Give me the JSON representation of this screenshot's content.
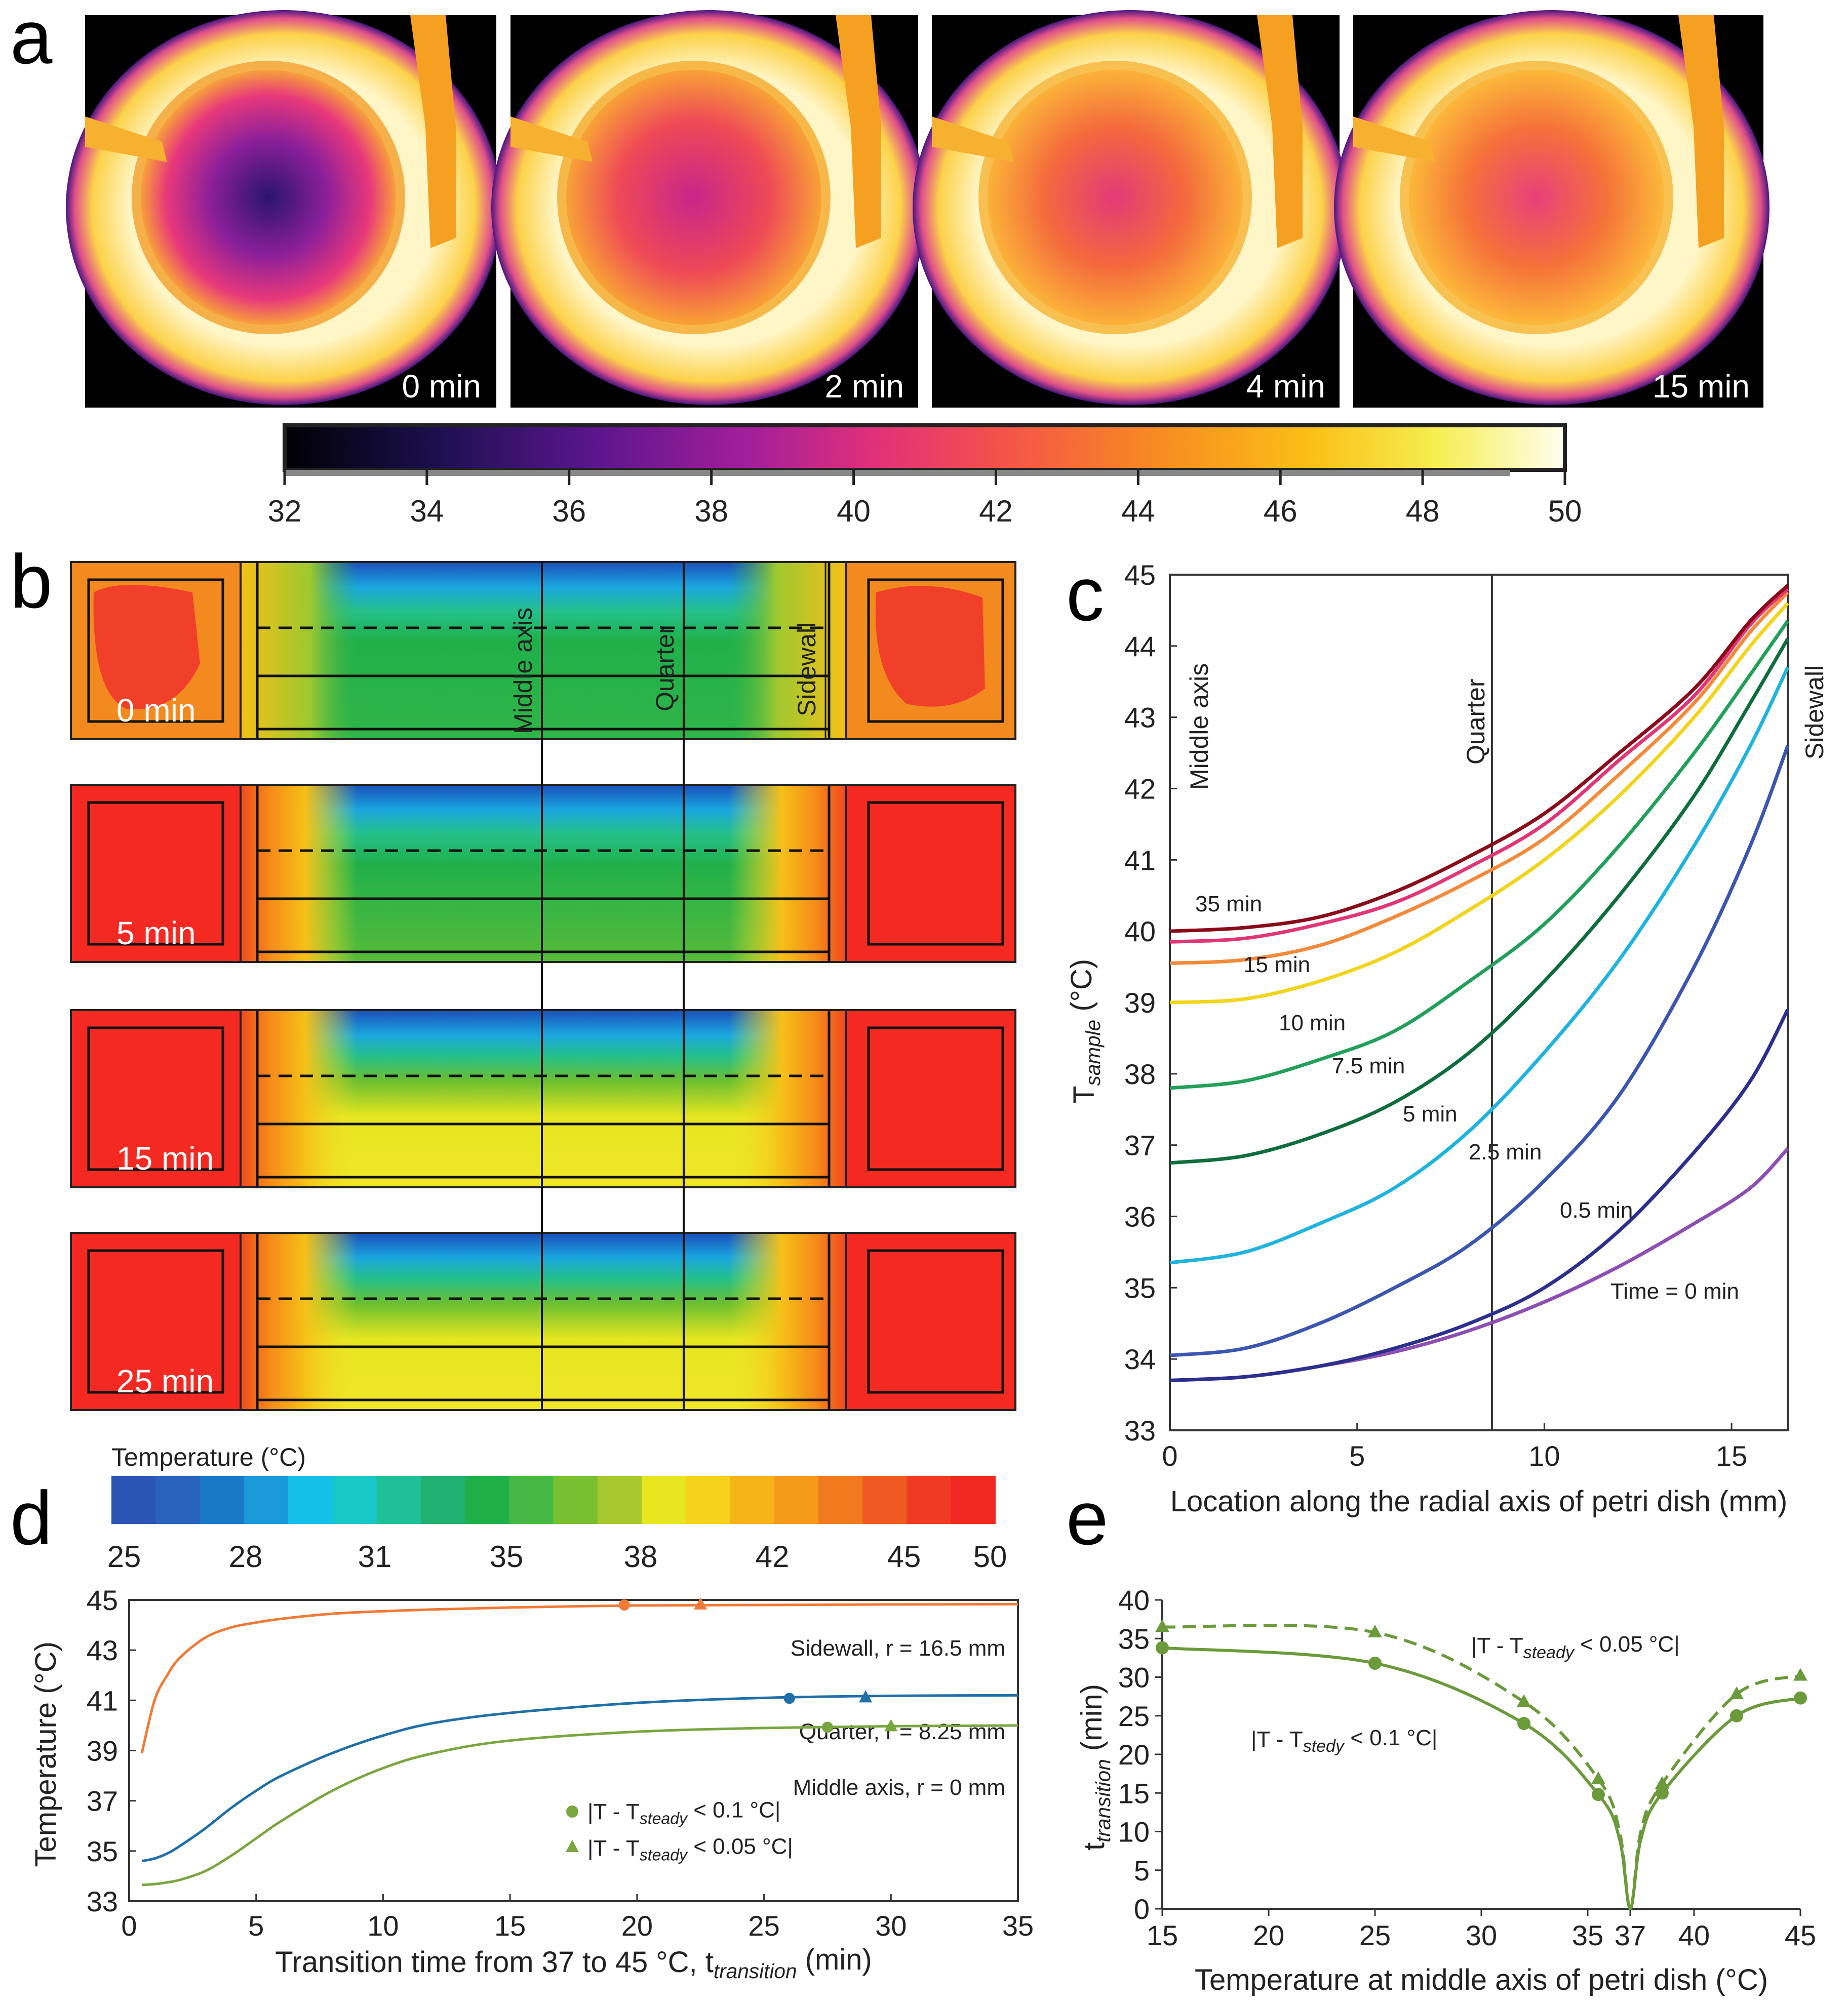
{
  "panel_labels": {
    "a": "a",
    "b": "b",
    "c": "c",
    "d": "d",
    "e": "e"
  },
  "colors": {
    "series_c": [
      "#8e4fb4",
      "#2b2f8e",
      "#3b56b0",
      "#1fb3df",
      "#0e6d3c",
      "#22a05a",
      "#f2d41a",
      "#f38a3a",
      "#e23575",
      "#8b0a1a"
    ],
    "sidewall": "#f07a36",
    "quarter": "#1f6fa8",
    "middle": "#7aa63f",
    "e_series": "#6a9a3a"
  },
  "panel_a": {
    "frames": [
      {
        "label": "0 min"
      },
      {
        "label": "2 min"
      },
      {
        "label": "4 min"
      },
      {
        "label": "15 min"
      }
    ],
    "colorbar_ticks": [
      "32",
      "34",
      "36",
      "38",
      "40",
      "42",
      "44",
      "46",
      "48",
      "50"
    ]
  },
  "panel_b": {
    "frames": [
      {
        "label": "0 min"
      },
      {
        "label": "5 min"
      },
      {
        "label": "15 min"
      },
      {
        "label": "25 min"
      }
    ],
    "axis_labels": {
      "middle": "Middle axis",
      "quarter": "Quarter",
      "sidewall": "Sidewall"
    },
    "colorbar_title": "Temperature (°C)",
    "colorbar_ticks": [
      "25",
      "28",
      "31",
      "35",
      "38",
      "42",
      "45",
      "50"
    ]
  },
  "chart_data": [
    {
      "id": "c",
      "type": "line",
      "xlabel": "Location along the radial axis of petri dish (mm)",
      "ylabel": "T",
      "ylabel_sub": "sample",
      "ylabel_unit": " (°C)",
      "xlim": [
        0,
        16.5
      ],
      "ylim": [
        33,
        45
      ],
      "xticks": [
        "0",
        "5",
        "10",
        "15"
      ],
      "yticks": [
        "33",
        "34",
        "35",
        "36",
        "37",
        "38",
        "39",
        "40",
        "41",
        "42",
        "43",
        "44",
        "45"
      ],
      "annotations": {
        "middle": "Middle axis",
        "quarter": "Quarter",
        "sidewall": "Sidewall"
      },
      "x": [
        0,
        2,
        4,
        6,
        8,
        10,
        12,
        14,
        15.5,
        16.5
      ],
      "series": [
        {
          "name": "Time = 0 min",
          "values": [
            33.7,
            33.75,
            33.9,
            34.1,
            34.4,
            34.8,
            35.3,
            35.9,
            36.4,
            36.95
          ]
        },
        {
          "name": "0.5 min",
          "values": [
            33.7,
            33.75,
            33.9,
            34.15,
            34.5,
            35.0,
            35.8,
            36.9,
            37.9,
            38.9
          ]
        },
        {
          "name": "2.5 min",
          "values": [
            34.05,
            34.15,
            34.5,
            35.0,
            35.6,
            36.5,
            37.7,
            39.5,
            41.2,
            42.6
          ]
        },
        {
          "name": "5 min",
          "values": [
            35.35,
            35.5,
            35.9,
            36.4,
            37.2,
            38.3,
            39.6,
            41.2,
            42.6,
            43.7
          ]
        },
        {
          "name": "7.5 min",
          "values": [
            36.75,
            36.85,
            37.15,
            37.6,
            38.3,
            39.3,
            40.5,
            41.9,
            43.2,
            44.1
          ]
        },
        {
          "name": "10 min",
          "values": [
            37.8,
            37.9,
            38.2,
            38.6,
            39.3,
            40.1,
            41.2,
            42.5,
            43.6,
            44.35
          ]
        },
        {
          "name": "15 min",
          "values": [
            39.0,
            39.05,
            39.3,
            39.7,
            40.3,
            41.0,
            41.9,
            43.0,
            44.0,
            44.6
          ]
        },
        {
          "name": "",
          "values": [
            39.55,
            39.6,
            39.8,
            40.2,
            40.7,
            41.3,
            42.2,
            43.2,
            44.2,
            44.75
          ]
        },
        {
          "name": "",
          "values": [
            39.85,
            39.9,
            40.1,
            40.4,
            40.9,
            41.5,
            42.4,
            43.3,
            44.3,
            44.8
          ]
        },
        {
          "name": "35 min",
          "values": [
            40.0,
            40.05,
            40.2,
            40.55,
            41.05,
            41.65,
            42.5,
            43.4,
            44.35,
            44.85
          ]
        }
      ]
    },
    {
      "id": "d",
      "type": "line",
      "xlabel": "Transition time from 37 to 45 °C, t",
      "xlabel_sub": "transition",
      "xlabel_unit": " (min)",
      "ylabel": "Temperature (°C)",
      "xlim": [
        0,
        35
      ],
      "ylim": [
        33,
        45
      ],
      "xticks": [
        "0",
        "5",
        "10",
        "15",
        "20",
        "25",
        "30",
        "35"
      ],
      "yticks": [
        "33",
        "35",
        "37",
        "39",
        "41",
        "43",
        "45"
      ],
      "x": [
        0.5,
        1,
        1.5,
        2,
        3,
        4,
        5,
        6,
        8,
        10,
        12,
        15,
        20,
        25,
        30,
        35
      ],
      "series": [
        {
          "name": "Sidewall, r = 16.5 mm",
          "values": [
            38.9,
            41.0,
            42.0,
            42.7,
            43.5,
            43.9,
            44.1,
            44.25,
            44.45,
            44.55,
            44.62,
            44.7,
            44.78,
            44.8,
            44.82,
            44.83
          ],
          "marker_circle": [
            19.5,
            44.8
          ],
          "marker_triangle": [
            22.5,
            44.82
          ]
        },
        {
          "name": "Quarter, r = 8.25 mm",
          "values": [
            34.6,
            34.7,
            34.9,
            35.2,
            35.9,
            36.7,
            37.4,
            38.0,
            38.9,
            39.6,
            40.1,
            40.5,
            40.9,
            41.1,
            41.18,
            41.2
          ],
          "marker_circle": [
            26.0,
            41.08
          ],
          "marker_triangle": [
            29.0,
            41.12
          ]
        },
        {
          "name": "Middle axis, r = 0 mm",
          "values": [
            33.65,
            33.68,
            33.75,
            33.85,
            34.2,
            34.8,
            35.5,
            36.2,
            37.4,
            38.3,
            38.9,
            39.4,
            39.75,
            39.9,
            39.97,
            40.0
          ],
          "marker_circle": [
            27.5,
            39.93
          ],
          "marker_triangle": [
            30.0,
            39.97
          ]
        }
      ],
      "legend": [
        {
          "symbol": "circle",
          "text_pre": "|T - T",
          "text_sub": "steady",
          "text_post": " < 0.1 °C|"
        },
        {
          "symbol": "triangle",
          "text_pre": "|T - T",
          "text_sub": "steady",
          "text_post": " < 0.05 °C|"
        }
      ]
    },
    {
      "id": "e",
      "type": "line",
      "xlabel": "Temperature at middle axis of petri dish (°C)",
      "ylabel": "t",
      "ylabel_sub": "transition",
      "ylabel_unit": " (min)",
      "xlim": [
        15,
        45
      ],
      "ylim": [
        0,
        40
      ],
      "xticks": [
        "15",
        "20",
        "25",
        "30",
        "35",
        "37",
        "40",
        "45"
      ],
      "xtick_values": [
        15,
        20,
        25,
        30,
        35,
        37,
        40,
        45
      ],
      "yticks": [
        "0",
        "5",
        "10",
        "15",
        "20",
        "25",
        "30",
        "35",
        "40"
      ],
      "series": [
        {
          "name": "|T - Tstedy < 0.1 °C|",
          "style": "solid",
          "marker": "circle",
          "x": [
            15,
            25,
            32,
            35.5,
            36.5,
            37,
            37.5,
            38.5,
            42,
            45
          ],
          "y": [
            33.8,
            31.8,
            24.0,
            14.8,
            9.0,
            0,
            9.0,
            15.0,
            25.0,
            27.3
          ],
          "markers_x": [
            15,
            25,
            32,
            35.5,
            38.5,
            42,
            45
          ],
          "markers_y": [
            33.8,
            31.8,
            24.0,
            14.8,
            15.0,
            25.0,
            27.3
          ]
        },
        {
          "name": "|T - Tsteady < 0.05 °C|",
          "style": "dashed",
          "marker": "triangle",
          "x": [
            15,
            25,
            32,
            35.5,
            36.5,
            37,
            37.5,
            38.5,
            42,
            45
          ],
          "y": [
            36.5,
            35.8,
            26.8,
            16.8,
            10.0,
            0,
            10.0,
            16.2,
            27.8,
            30.2
          ],
          "markers_x": [
            15,
            25,
            32,
            35.5,
            38.5,
            42,
            45
          ],
          "markers_y": [
            36.5,
            35.8,
            26.8,
            16.8,
            16.2,
            27.8,
            30.2
          ]
        }
      ],
      "annotations": [
        {
          "text_pre": "|T - T",
          "text_sub": "steady",
          "text_post": " < 0.05 °C|"
        },
        {
          "text_pre": "|T - T",
          "text_sub": "stedy",
          "text_post": " < 0.1 °C|"
        }
      ]
    }
  ]
}
